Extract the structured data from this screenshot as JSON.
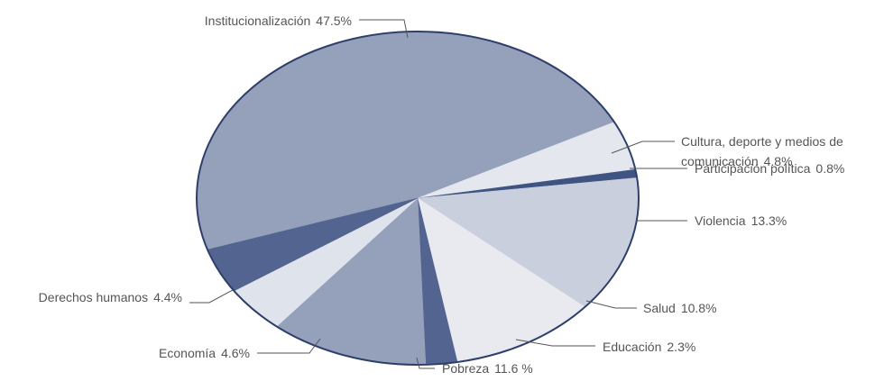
{
  "chart_data": {
    "type": "pie",
    "categories": [
      "Institucionalización",
      "Cultura, deporte y medios de comunicación",
      "Participación política",
      "Violencia",
      "Salud",
      "Educación",
      "Pobreza",
      "Economía",
      "Derechos humanos"
    ],
    "values": [
      47.5,
      4.8,
      0.8,
      13.3,
      10.8,
      2.3,
      11.6,
      4.6,
      4.4
    ],
    "value_labels": [
      "47.5%",
      "4.8%",
      "0.8%",
      "13.3%",
      "10.8%",
      "2.3%",
      "11.6 %",
      "4.6%",
      "4.4%"
    ],
    "colors": [
      "#95a1ba",
      "#e4e7ee",
      "#3f5482",
      "#c9cfdc",
      "#e8eaf0",
      "#52648f",
      "#95a1ba",
      "#dfe3eb",
      "#52648f"
    ]
  }
}
